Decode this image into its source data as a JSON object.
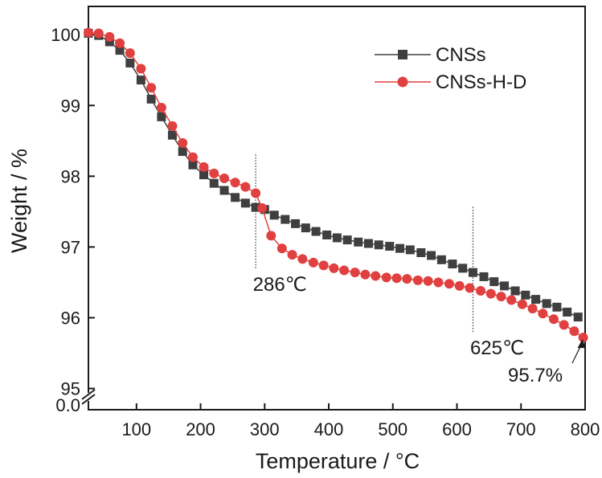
{
  "chart_data": {
    "type": "line",
    "xlabel": "Temperature / °C",
    "ylabel": "Weight / %",
    "xlim": [
      25,
      800
    ],
    "ylim": [
      94.95,
      100.4
    ],
    "x_ticks": [
      "100",
      "200",
      "300",
      "400",
      "500",
      "600",
      "700",
      "800"
    ],
    "y_ticks": [
      "95",
      "96",
      "97",
      "98",
      "99",
      "100"
    ],
    "y_break_label": "0.0",
    "legend_position": "top-right",
    "series": [
      {
        "name": "CNSs",
        "color": "#3f3f3f",
        "marker": "square",
        "x": [
          25,
          41,
          58,
          74,
          90,
          107,
          123,
          139,
          156,
          172,
          188,
          205,
          221,
          237,
          254,
          270,
          286,
          300,
          315,
          332,
          348,
          364,
          380,
          397,
          413,
          429,
          446,
          462,
          478,
          495,
          511,
          527,
          544,
          560,
          576,
          593,
          609,
          625,
          642,
          658,
          674,
          691,
          707,
          723,
          740,
          756,
          772,
          789
        ],
        "y": [
          100.02,
          99.99,
          99.9,
          99.78,
          99.6,
          99.36,
          99.09,
          98.84,
          98.58,
          98.35,
          98.16,
          98.02,
          97.9,
          97.8,
          97.7,
          97.62,
          97.56,
          97.53,
          97.45,
          97.39,
          97.33,
          97.27,
          97.22,
          97.17,
          97.13,
          97.1,
          97.07,
          97.05,
          97.03,
          97.01,
          96.98,
          96.96,
          96.92,
          96.88,
          96.82,
          96.76,
          96.7,
          96.64,
          96.58,
          96.51,
          96.45,
          96.38,
          96.32,
          96.26,
          96.2,
          96.15,
          96.08,
          96.01
        ]
      },
      {
        "name": "CNSs-H-D",
        "color": "#e0403f",
        "marker": "circle",
        "x": [
          25,
          41,
          58,
          74,
          90,
          107,
          123,
          139,
          156,
          172,
          188,
          205,
          221,
          237,
          254,
          270,
          286,
          296,
          310,
          327,
          343,
          359,
          376,
          392,
          408,
          424,
          441,
          457,
          473,
          490,
          506,
          522,
          539,
          555,
          571,
          588,
          604,
          620,
          637,
          653,
          669,
          685,
          702,
          718,
          734,
          751,
          767,
          783,
          797
        ],
        "y": [
          100.03,
          100.02,
          99.97,
          99.88,
          99.74,
          99.52,
          99.25,
          98.97,
          98.71,
          98.47,
          98.27,
          98.13,
          98.04,
          97.97,
          97.91,
          97.85,
          97.76,
          97.55,
          97.16,
          96.98,
          96.89,
          96.83,
          96.78,
          96.74,
          96.7,
          96.67,
          96.64,
          96.61,
          96.59,
          96.57,
          96.56,
          96.55,
          96.53,
          96.52,
          96.5,
          96.48,
          96.45,
          96.42,
          96.38,
          96.34,
          96.3,
          96.25,
          96.19,
          96.13,
          96.06,
          95.98,
          95.9,
          95.81,
          95.72
        ]
      }
    ],
    "annotations": [
      {
        "label": "286℃",
        "x": 286,
        "line_y": [
          96.7,
          98.33
        ]
      },
      {
        "label": "625℃",
        "x": 625,
        "line_y": [
          95.8,
          97.57
        ]
      },
      {
        "label": "95.7%",
        "arrow_to": [
          797,
          95.72
        ]
      }
    ]
  }
}
